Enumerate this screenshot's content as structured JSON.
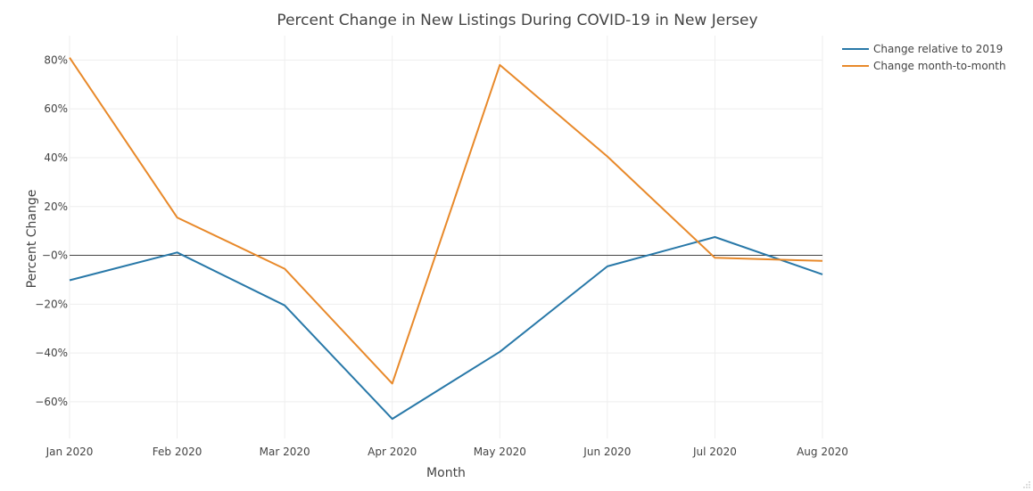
{
  "chart_data": {
    "type": "line",
    "title": "Percent Change in New Listings During COVID-19 in New Jersey",
    "xlabel": "Month",
    "ylabel": "Percent Change",
    "categories": [
      "Jan 2020",
      "Feb 2020",
      "Mar 2020",
      "Apr 2020",
      "May 2020",
      "Jun 2020",
      "Jul 2020",
      "Aug 2020"
    ],
    "ylim": [
      -75,
      90
    ],
    "yticks": [
      80,
      60,
      40,
      20,
      0,
      -20,
      -40,
      -60
    ],
    "ytick_labels": [
      "80%",
      "60%",
      "40%",
      "20%",
      "−0%",
      "−20%",
      "−40%",
      "−60%"
    ],
    "grid": true,
    "legend_position": "top-right",
    "series": [
      {
        "name": "Change relative to 2019",
        "color": "#2878a8",
        "values": [
          -10.2,
          1.2,
          -20.5,
          -67.0,
          -39.5,
          -4.5,
          7.5,
          -7.8
        ]
      },
      {
        "name": "Change month-to-month",
        "color": "#e8892a",
        "values": [
          81.0,
          15.5,
          -5.5,
          -52.5,
          78.0,
          40.5,
          -1.0,
          -2.3
        ]
      }
    ]
  }
}
